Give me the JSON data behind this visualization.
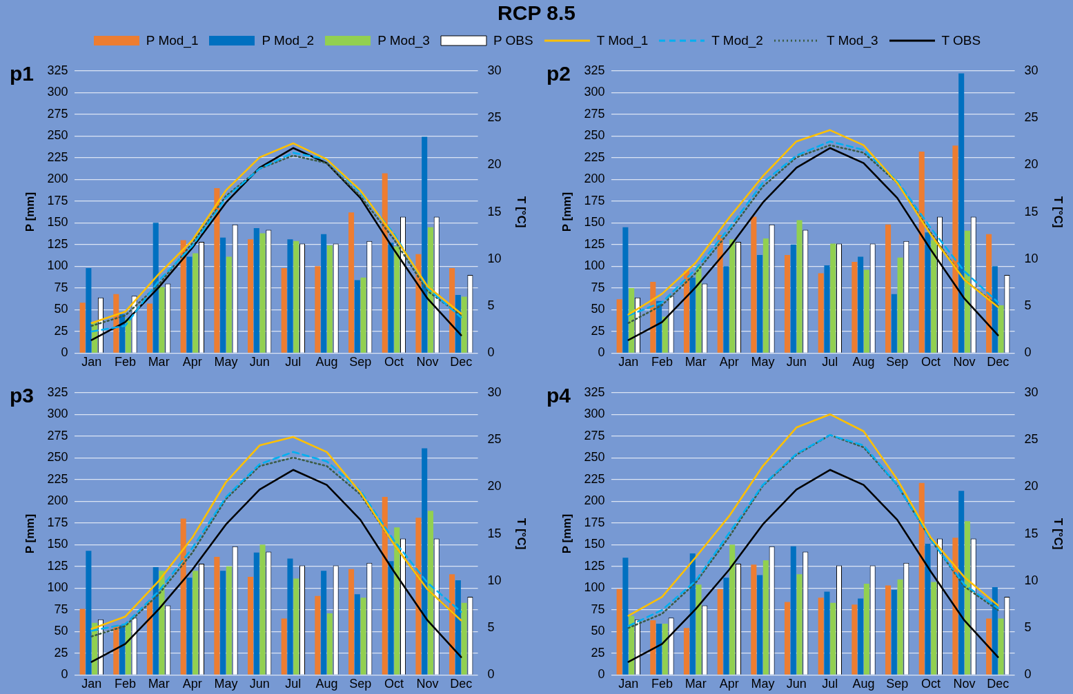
{
  "chart_data": [
    {
      "type": "bar",
      "title": "RCP 8.5",
      "subtitle": "p1",
      "ylabel": "P [mm]",
      "y2label": "T [°C]",
      "legend": "top",
      "grid": "y",
      "marker": "none",
      "categories": [
        "Jan",
        "Feb",
        "Mar",
        "Apr",
        "May",
        "Jun",
        "Jul",
        "Aug",
        "Sep",
        "Oct",
        "Nov",
        "Dec"
      ],
      "ylim": [
        0,
        325
      ],
      "yticks": [
        0,
        25,
        50,
        75,
        100,
        125,
        150,
        175,
        200,
        225,
        250,
        275,
        300,
        325
      ],
      "y2lim": [
        0,
        30
      ],
      "y2ticks": [
        0,
        5,
        10,
        15,
        20,
        25,
        30
      ],
      "series": [
        {
          "name": "P Mod_1",
          "color": "#ed7d31",
          "values": [
            58,
            68,
            57,
            130,
            190,
            131,
            98,
            100,
            162,
            207,
            114,
            98
          ]
        },
        {
          "name": "P Mod_2",
          "color": "#0070c0",
          "values": [
            98,
            45,
            150,
            111,
            133,
            144,
            131,
            137,
            84,
            127,
            249,
            67
          ]
        },
        {
          "name": "P Mod_3",
          "color": "#92d050",
          "values": [
            35,
            40,
            76,
            115,
            111,
            138,
            129,
            124,
            87,
            123,
            145,
            65
          ]
        },
        {
          "name": "P OBS",
          "color": "#ffffff",
          "values": [
            64,
            66,
            80,
            128,
            148,
            142,
            126,
            126,
            129,
            157,
            157,
            90
          ]
        },
        {
          "name": "T Mod_1",
          "type": "line",
          "axis": "y2",
          "color": "#ffc000",
          "line_style": "solid",
          "values": [
            3.2,
            4.4,
            8.4,
            12.0,
            17.3,
            20.8,
            22.3,
            20.6,
            17.3,
            12.5,
            7.1,
            4.2
          ]
        },
        {
          "name": "T Mod_2",
          "type": "line",
          "axis": "y2",
          "color": "#00b0f0",
          "line_style": "dashed",
          "values": [
            2.3,
            2.9,
            7.7,
            11.4,
            16.5,
            19.6,
            21.3,
            20.6,
            17.1,
            12.7,
            6.9,
            3.8
          ]
        },
        {
          "name": "T Mod_3",
          "type": "line",
          "axis": "y2",
          "color": "#3b5b45",
          "line_style": "dotted",
          "values": [
            2.9,
            4.0,
            7.3,
            11.7,
            16.7,
            19.6,
            21.0,
            20.2,
            16.7,
            12.1,
            6.6,
            4.0
          ]
        },
        {
          "name": "T OBS",
          "type": "line",
          "axis": "y2",
          "color": "#000000",
          "line_style": "solid",
          "values": [
            1.4,
            3.3,
            7.0,
            11.2,
            16.0,
            19.7,
            21.8,
            20.2,
            16.5,
            11.0,
            5.8,
            1.9
          ]
        }
      ]
    },
    {
      "type": "bar",
      "subtitle": "p2",
      "ylabel": "P [mm]",
      "y2label": "T [°C]",
      "grid": "y",
      "marker": "none",
      "categories": [
        "Jan",
        "Feb",
        "Mar",
        "Apr",
        "May",
        "Jun",
        "Jul",
        "Aug",
        "Sep",
        "Oct",
        "Nov",
        "Dec"
      ],
      "ylim": [
        0,
        325
      ],
      "yticks": [
        0,
        25,
        50,
        75,
        100,
        125,
        150,
        175,
        200,
        225,
        250,
        275,
        300,
        325
      ],
      "y2lim": [
        0,
        30
      ],
      "y2ticks": [
        0,
        5,
        10,
        15,
        20,
        25,
        30
      ],
      "series": [
        {
          "color": "#ed7d31",
          "values": [
            62,
            82,
            95,
            136,
            157,
            113,
            92,
            105,
            148,
            232,
            239,
            137
          ]
        },
        {
          "color": "#0070c0",
          "values": [
            145,
            60,
            87,
            100,
            113,
            125,
            101,
            111,
            68,
            139,
            322,
            100
          ]
        },
        {
          "color": "#92d050",
          "values": [
            75,
            42,
            100,
            131,
            132,
            153,
            126,
            96,
            110,
            130,
            141,
            55
          ]
        },
        {
          "color": "#ffffff",
          "values": [
            64,
            66,
            80,
            128,
            148,
            142,
            126,
            126,
            129,
            157,
            157,
            90
          ]
        },
        {
          "type": "line",
          "axis": "y2",
          "color": "#ffc000",
          "line_style": "solid",
          "values": [
            4.1,
            6.3,
            9.6,
            14.4,
            18.8,
            22.5,
            23.7,
            22.1,
            18.1,
            12.6,
            7.8,
            4.9
          ]
        },
        {
          "type": "line",
          "axis": "y2",
          "color": "#00b0f0",
          "line_style": "dashed",
          "values": [
            4.0,
            5.4,
            8.9,
            13.3,
            18.1,
            21.0,
            22.5,
            21.6,
            18.3,
            13.3,
            8.7,
            5.4
          ]
        },
        {
          "type": "line",
          "axis": "y2",
          "color": "#3b5b45",
          "line_style": "dotted",
          "values": [
            3.2,
            5.1,
            8.5,
            12.9,
            17.7,
            20.8,
            22.1,
            21.3,
            18.1,
            12.8,
            7.8,
            5.0
          ]
        },
        {
          "type": "line",
          "axis": "y2",
          "color": "#000000",
          "line_style": "solid",
          "values": [
            1.4,
            3.3,
            7.0,
            11.2,
            16.0,
            19.7,
            21.8,
            20.2,
            16.5,
            11.0,
            5.8,
            1.9
          ]
        }
      ]
    },
    {
      "type": "bar",
      "subtitle": "p3",
      "ylabel": "P [mm]",
      "y2label": "T [°C]",
      "grid": "y",
      "marker": "none",
      "categories": [
        "Jan",
        "Feb",
        "Mar",
        "Apr",
        "May",
        "Jun",
        "Jul",
        "Aug",
        "Sep",
        "Oct",
        "Nov",
        "Dec"
      ],
      "ylim": [
        0,
        325
      ],
      "yticks": [
        0,
        25,
        50,
        75,
        100,
        125,
        150,
        175,
        200,
        225,
        250,
        275,
        300,
        325
      ],
      "y2lim": [
        0,
        30
      ],
      "y2ticks": [
        0,
        5,
        10,
        15,
        20,
        25,
        30
      ],
      "series": [
        {
          "color": "#ed7d31",
          "values": [
            76,
            57,
            85,
            180,
            136,
            113,
            65,
            91,
            122,
            205,
            181,
            116
          ]
        },
        {
          "color": "#0070c0",
          "values": [
            143,
            57,
            124,
            112,
            120,
            141,
            134,
            120,
            93,
            131,
            261,
            109
          ]
        },
        {
          "color": "#92d050",
          "values": [
            60,
            60,
            120,
            120,
            125,
            150,
            111,
            71,
            89,
            170,
            189,
            83
          ]
        },
        {
          "color": "#ffffff",
          "values": [
            64,
            66,
            80,
            128,
            148,
            142,
            126,
            126,
            129,
            157,
            157,
            90
          ]
        },
        {
          "type": "line",
          "axis": "y2",
          "color": "#ffc000",
          "line_style": "solid",
          "values": [
            4.9,
            6.2,
            10.0,
            14.6,
            20.5,
            24.4,
            25.3,
            23.7,
            19.4,
            13.9,
            9.1,
            5.8
          ]
        },
        {
          "type": "line",
          "axis": "y2",
          "color": "#00b0f0",
          "line_style": "dashed",
          "values": [
            4.7,
            5.4,
            8.9,
            13.5,
            18.9,
            22.4,
            23.7,
            22.7,
            19.6,
            14.3,
            9.8,
            6.7
          ]
        },
        {
          "type": "line",
          "axis": "y2",
          "color": "#3b5b45",
          "line_style": "dotted",
          "values": [
            4.1,
            5.2,
            8.6,
            13.0,
            18.7,
            22.2,
            23.1,
            22.2,
            19.2,
            13.9,
            9.1,
            5.8
          ]
        },
        {
          "type": "line",
          "axis": "y2",
          "color": "#000000",
          "line_style": "solid",
          "values": [
            1.4,
            3.3,
            7.0,
            11.2,
            16.0,
            19.7,
            21.8,
            20.2,
            16.5,
            11.0,
            5.8,
            1.9
          ]
        }
      ]
    },
    {
      "type": "bar",
      "subtitle": "p4",
      "ylabel": "P [mm]",
      "y2label": "T [°C]",
      "grid": "y",
      "marker": "none",
      "categories": [
        "Jan",
        "Feb",
        "Mar",
        "Apr",
        "May",
        "Jun",
        "Jul",
        "Aug",
        "Sep",
        "Oct",
        "Nov",
        "Dec"
      ],
      "ylim": [
        0,
        325
      ],
      "yticks": [
        0,
        25,
        50,
        75,
        100,
        125,
        150,
        175,
        200,
        225,
        250,
        275,
        300,
        325
      ],
      "y2lim": [
        0,
        30
      ],
      "y2ticks": [
        0,
        5,
        10,
        15,
        20,
        25,
        30
      ],
      "series": [
        {
          "color": "#ed7d31",
          "values": [
            99,
            63,
            54,
            99,
            127,
            84,
            89,
            81,
            103,
            221,
            158,
            65
          ]
        },
        {
          "color": "#0070c0",
          "values": [
            135,
            59,
            140,
            112,
            115,
            148,
            96,
            88,
            98,
            151,
            212,
            101
          ]
        },
        {
          "color": "#92d050",
          "values": [
            68,
            59,
            104,
            150,
            132,
            116,
            83,
            105,
            110,
            107,
            177,
            65
          ]
        },
        {
          "color": "#ffffff",
          "values": [
            64,
            66,
            80,
            128,
            148,
            142,
            126,
            126,
            129,
            157,
            157,
            90
          ]
        },
        {
          "type": "line",
          "axis": "y2",
          "color": "#ffc000",
          "line_style": "solid",
          "values": [
            6.3,
            8.3,
            12.5,
            16.9,
            22.2,
            26.3,
            27.7,
            25.9,
            20.8,
            14.6,
            10.4,
            7.4
          ]
        },
        {
          "type": "line",
          "axis": "y2",
          "color": "#00b0f0",
          "line_style": "dashed",
          "values": [
            5.2,
            6.9,
            10.0,
            15.1,
            20.2,
            23.5,
            25.5,
            24.4,
            20.2,
            14.4,
            9.6,
            7.1
          ]
        },
        {
          "type": "line",
          "axis": "y2",
          "color": "#3b5b45",
          "line_style": "dotted",
          "values": [
            5.0,
            6.5,
            9.8,
            14.7,
            20.1,
            23.4,
            25.5,
            24.2,
            20.2,
            14.4,
            9.4,
            6.9
          ]
        },
        {
          "type": "line",
          "axis": "y2",
          "color": "#000000",
          "line_style": "solid",
          "values": [
            1.4,
            3.3,
            7.0,
            11.2,
            16.0,
            19.7,
            21.8,
            20.2,
            16.5,
            11.0,
            5.8,
            1.9
          ]
        }
      ]
    }
  ]
}
